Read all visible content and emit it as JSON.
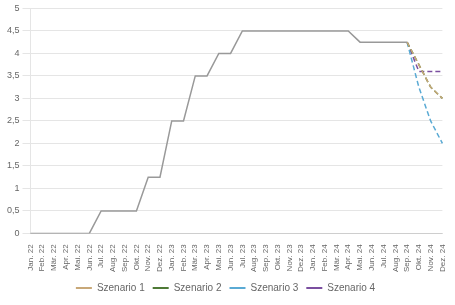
{
  "chart_data": {
    "type": "line",
    "categories": [
      "Jan. 22",
      "Feb. 22",
      "Mär. 22",
      "Apr. 22",
      "Mai. 22",
      "Jun. 22",
      "Jul. 22",
      "Aug. 22",
      "Sep. 22",
      "Okt. 22",
      "Nov. 22",
      "Dez. 22",
      "Jan. 23",
      "Feb. 23",
      "Mär. 23",
      "Apr. 23",
      "Mai. 23",
      "Jun. 23",
      "Jul. 23",
      "Aug. 23",
      "Sep. 23",
      "Okt. 23",
      "Nov. 23",
      "Dez. 23",
      "Jan. 24",
      "Feb. 24",
      "Mär. 24",
      "Apr. 24",
      "Mai. 24",
      "Jun. 24",
      "Jul. 24",
      "Aug. 24",
      "Sep. 24",
      "Okt. 24",
      "Nov. 24",
      "Dez. 24"
    ],
    "series": [
      {
        "color": "#999999",
        "line_style": "solid",
        "values": [
          0.0,
          0.0,
          0.0,
          0.0,
          0.0,
          0.0,
          0.5,
          0.5,
          0.5,
          0.5,
          1.25,
          1.25,
          2.5,
          2.5,
          3.5,
          3.5,
          4.0,
          4.0,
          4.5,
          4.5,
          4.5,
          4.5,
          4.5,
          4.5,
          4.5,
          4.5,
          4.5,
          4.5,
          4.25,
          4.25,
          4.25,
          4.25,
          4.25,
          null,
          null,
          null
        ]
      },
      {
        "name": "Szenario 1",
        "color": "#C8A878",
        "line_style": "dashed",
        "values": [
          null,
          null,
          null,
          null,
          null,
          null,
          null,
          null,
          null,
          null,
          null,
          null,
          null,
          null,
          null,
          null,
          null,
          null,
          null,
          null,
          null,
          null,
          null,
          null,
          null,
          null,
          null,
          null,
          null,
          null,
          null,
          null,
          4.25,
          3.75,
          3.25,
          3.0
        ]
      },
      {
        "name": "Szenario 2",
        "color": "#4E7A36",
        "line_style": "dashed",
        "values": [
          null,
          null,
          null,
          null,
          null,
          null,
          null,
          null,
          null,
          null,
          null,
          null,
          null,
          null,
          null,
          null,
          null,
          null,
          null,
          null,
          null,
          null,
          null,
          null,
          null,
          null,
          null,
          null,
          null,
          null,
          null,
          null,
          4.25,
          3.75,
          3.25,
          3.0
        ]
      },
      {
        "name": "Szenario 3",
        "color": "#5AAAD4",
        "line_style": "dashed",
        "values": [
          null,
          null,
          null,
          null,
          null,
          null,
          null,
          null,
          null,
          null,
          null,
          null,
          null,
          null,
          null,
          null,
          null,
          null,
          null,
          null,
          null,
          null,
          null,
          null,
          null,
          null,
          null,
          null,
          null,
          null,
          null,
          null,
          4.25,
          3.25,
          2.5,
          2.0
        ]
      },
      {
        "name": "Szenario 4",
        "color": "#7B4FA0",
        "line_style": "dashed",
        "values": [
          null,
          null,
          null,
          null,
          null,
          null,
          null,
          null,
          null,
          null,
          null,
          null,
          null,
          null,
          null,
          null,
          null,
          null,
          null,
          null,
          null,
          null,
          null,
          null,
          null,
          null,
          null,
          null,
          null,
          null,
          null,
          null,
          4.25,
          3.6,
          3.6,
          3.6
        ]
      }
    ],
    "ylim": [
      0,
      5
    ],
    "yticks": [
      0,
      {
        "value": 0.5,
        "label": "0,5"
      },
      1,
      {
        "value": 1.5,
        "label": "1,5"
      },
      2,
      {
        "value": 2.5,
        "label": "2,5"
      },
      3,
      {
        "value": 3.5,
        "label": "3,5"
      },
      4,
      {
        "value": 4.5,
        "label": "4,5"
      },
      5
    ],
    "grid": true,
    "legend": "bottom"
  }
}
